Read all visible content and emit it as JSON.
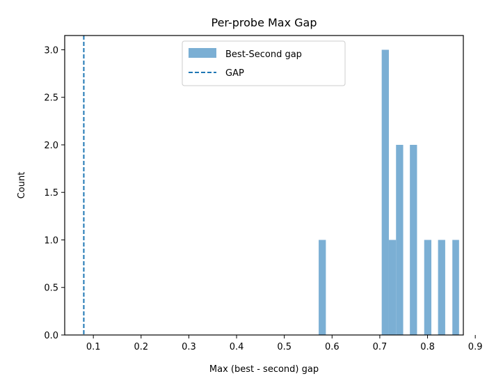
{
  "chart_data": {
    "type": "bar",
    "title": "Per-probe Max Gap",
    "xlabel": "Max (best - second) gap",
    "ylabel": "Count",
    "xlim": [
      0.04,
      0.875
    ],
    "ylim": [
      0,
      3.15
    ],
    "xticks": [
      "0.1",
      "0.2",
      "0.3",
      "0.4",
      "0.5",
      "0.6",
      "0.7",
      "0.8",
      "0.9"
    ],
    "xtick_values": [
      0.1,
      0.2,
      0.3,
      0.4,
      0.5,
      0.6,
      0.7,
      0.8,
      0.9
    ],
    "yticks": [
      "0.0",
      "0.5",
      "1.0",
      "1.5",
      "2.0",
      "2.5",
      "3.0"
    ],
    "ytick_values": [
      0,
      0.5,
      1.0,
      1.5,
      2.0,
      2.5,
      3.0
    ],
    "grid": false,
    "legend_position": "top-center",
    "series": [
      {
        "name": "Best-Second gap",
        "color": "#7bafd4",
        "bins": [
          {
            "x0": 0.572,
            "x1": 0.587,
            "count": 1
          },
          {
            "x0": 0.704,
            "x1": 0.719,
            "count": 3
          },
          {
            "x0": 0.719,
            "x1": 0.734,
            "count": 1
          },
          {
            "x0": 0.734,
            "x1": 0.749,
            "count": 2
          },
          {
            "x0": 0.763,
            "x1": 0.778,
            "count": 2
          },
          {
            "x0": 0.793,
            "x1": 0.808,
            "count": 1
          },
          {
            "x0": 0.822,
            "x1": 0.837,
            "count": 1
          },
          {
            "x0": 0.852,
            "x1": 0.866,
            "count": 1
          }
        ]
      }
    ],
    "reference_line": {
      "name": "GAP",
      "x": 0.08,
      "color": "#1f77b4",
      "style": "dashed"
    }
  }
}
